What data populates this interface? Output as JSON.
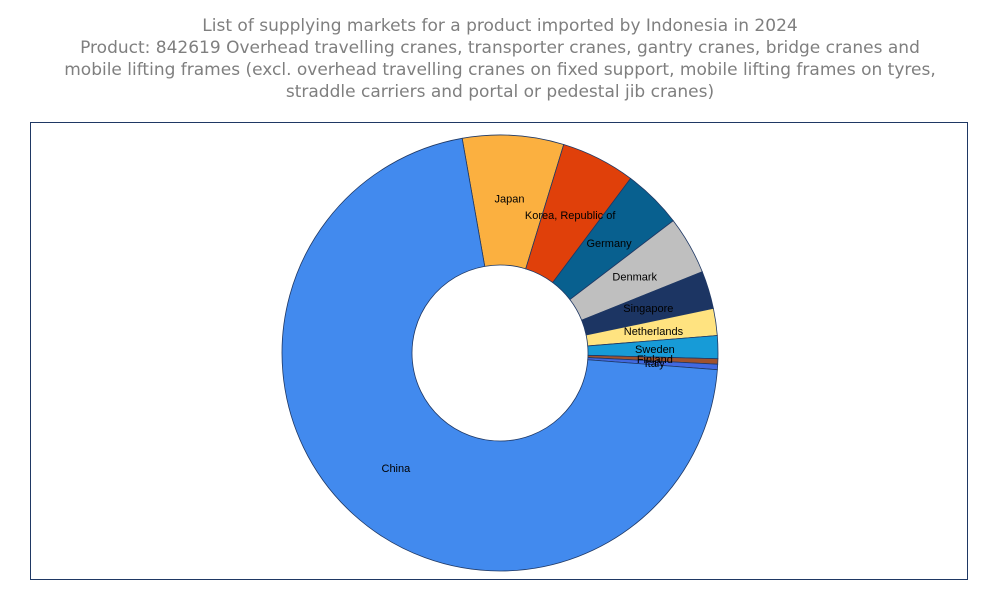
{
  "title_lines": [
    "List of supplying markets for a product imported by Indonesia in 2024",
    "Product: 842619 Overhead travelling cranes, transporter cranes, gantry cranes, bridge cranes and",
    "mobile lifting frames (excl. overhead travelling cranes on fixed support, mobile lifting frames on tyres,",
    "straddle carriers and portal or pedestal jib cranes)"
  ],
  "chart_data": {
    "type": "pie",
    "donut": true,
    "legend": "none",
    "slices": [
      {
        "label": "Japan",
        "value": 7.5,
        "color": "#fbb040"
      },
      {
        "label": "Korea, Republic of",
        "value": 5.5,
        "color": "#e0400a"
      },
      {
        "label": "Germany",
        "value": 4.4,
        "color": "#08608f"
      },
      {
        "label": "Denmark",
        "value": 4.3,
        "color": "#bfbfbf"
      },
      {
        "label": "Singapore",
        "value": 2.8,
        "color": "#1c3563"
      },
      {
        "label": "Netherlands",
        "value": 2.0,
        "color": "#ffe380"
      },
      {
        "label": "Sweden",
        "value": 1.7,
        "color": "#179bd7"
      },
      {
        "label": "Finland",
        "value": 0.4,
        "color": "#a0522d"
      },
      {
        "label": "Italy",
        "value": 0.4,
        "color": "#4169e1"
      },
      {
        "label": "China",
        "value": 71.0,
        "color": "#428aee"
      }
    ]
  }
}
